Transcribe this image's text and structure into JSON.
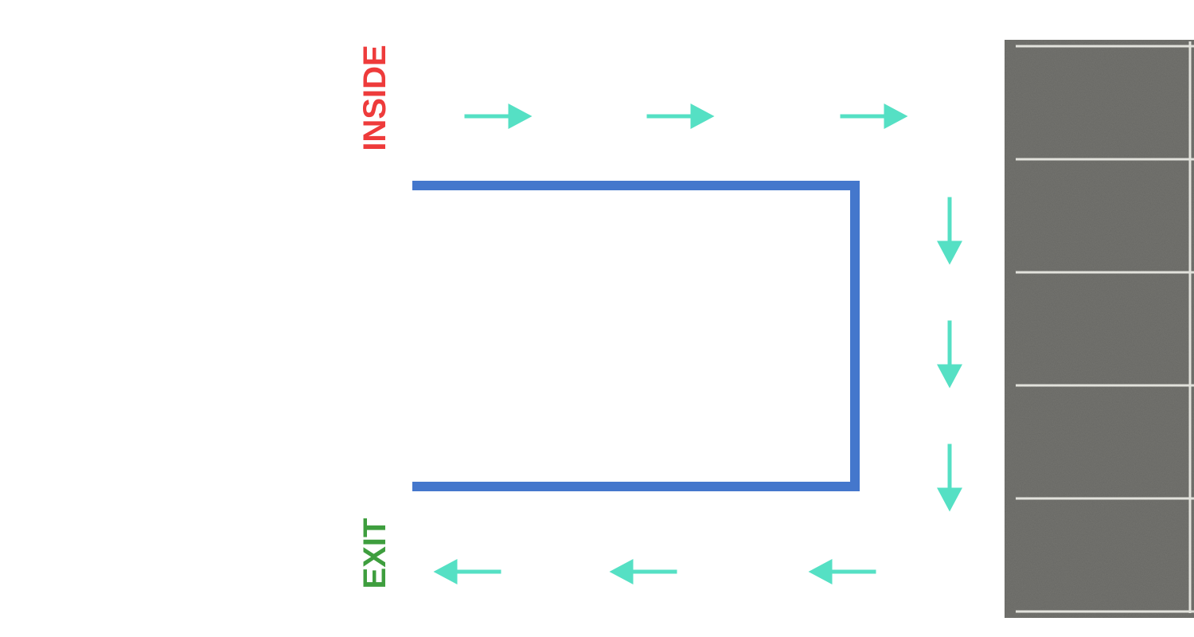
{
  "labels": {
    "inside": "INSIDE",
    "exit": "EXIT"
  },
  "flow": {
    "top_arrows": {
      "direction": "right",
      "count": 3
    },
    "right_arrows": {
      "direction": "down",
      "count": 3
    },
    "bottom_arrows": {
      "direction": "left",
      "count": 3
    }
  },
  "parking": {
    "stall_count": 5
  },
  "colors": {
    "inside_label": "#ee3b3b",
    "exit_label": "#3e9e3e",
    "arrow": "#55e0c4",
    "path": "#4477cc",
    "asphalt": "#6e6e6a",
    "stall_line": "#e2e2dc"
  }
}
